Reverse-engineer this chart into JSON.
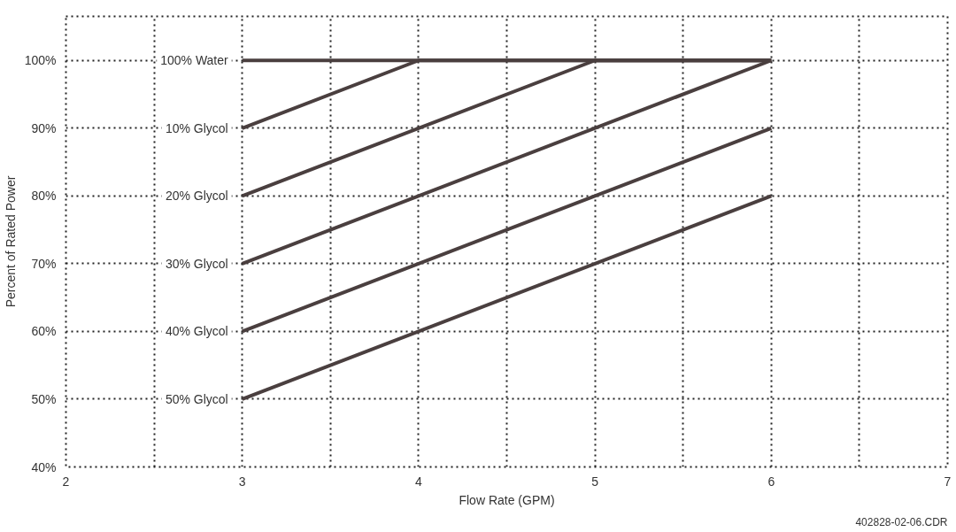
{
  "chart_data": {
    "type": "line",
    "xlabel": "Flow Rate (GPM)",
    "ylabel": "Percent of Rated Power",
    "annotations": [
      "402828-02-06.CDR"
    ],
    "xlim": [
      2,
      7
    ],
    "ylim": [
      40,
      106.5
    ],
    "xticks": [
      2,
      {
        "value": 2.5,
        "label": null
      },
      3,
      {
        "value": 3.5,
        "label": null
      },
      4,
      {
        "value": 4.5,
        "label": null
      },
      5,
      {
        "value": 5.5,
        "label": null
      },
      6,
      {
        "value": 6.5,
        "label": null
      },
      7
    ],
    "yticks": [
      {
        "value": 40,
        "label": "40%"
      },
      {
        "value": 50,
        "label": "50%"
      },
      {
        "value": 60,
        "label": "60%"
      },
      {
        "value": 70,
        "label": "70%"
      },
      {
        "value": 80,
        "label": "80%"
      },
      {
        "value": 90,
        "label": "90%"
      },
      {
        "value": 100,
        "label": "100%"
      }
    ],
    "grid": true,
    "legend": false,
    "marker": "none",
    "line_style": "solid",
    "series": [
      {
        "name": "100% Water",
        "color": "#4a3f3f",
        "x": [
          3,
          6
        ],
        "values": [
          100,
          100
        ]
      },
      {
        "name": "10% Glycol",
        "color": "#4a3f3f",
        "x": [
          3,
          4,
          6
        ],
        "values": [
          90,
          100,
          100
        ]
      },
      {
        "name": "20% Glycol",
        "color": "#4a3f3f",
        "x": [
          3,
          5,
          6
        ],
        "values": [
          80,
          100,
          100
        ]
      },
      {
        "name": "30% Glycol",
        "color": "#4a3f3f",
        "x": [
          3,
          6
        ],
        "values": [
          70,
          100
        ]
      },
      {
        "name": "40% Glycol",
        "color": "#4a3f3f",
        "x": [
          3,
          6
        ],
        "values": [
          60,
          90
        ]
      },
      {
        "name": "50% Glycol",
        "color": "#4a3f3f",
        "x": [
          3,
          6
        ],
        "values": [
          50,
          80
        ]
      }
    ]
  }
}
